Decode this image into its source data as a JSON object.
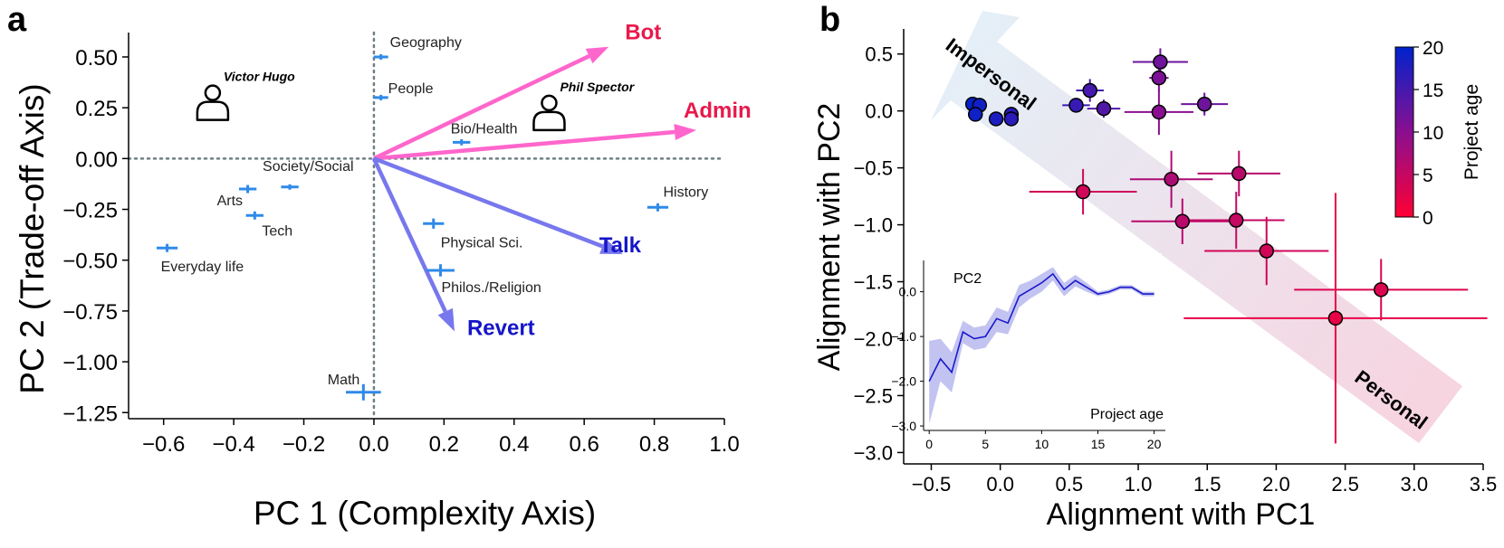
{
  "chart_data": [
    {
      "panel": "a",
      "type": "scatter",
      "xlabel": "PC 1 (Complexity Axis)",
      "ylabel": "PC 2 (Trade-off Axis)",
      "xlim": [
        -0.7,
        1.0
      ],
      "ylim": [
        -1.28,
        0.62
      ],
      "xticks": [
        -0.6,
        -0.4,
        -0.2,
        0.0,
        0.2,
        0.4,
        0.6,
        0.8,
        1.0
      ],
      "xtick_labels": [
        "−0.6",
        "−0.4",
        "−0.2",
        "0.0",
        "0.2",
        "0.4",
        "0.6",
        "0.8",
        "1.0"
      ],
      "yticks": [
        0.5,
        0.25,
        0.0,
        -0.25,
        -0.5,
        -0.75,
        -1.0,
        -1.25
      ],
      "ytick_labels": [
        "0.50",
        "0.25",
        "0.00",
        "−0.25",
        "−0.50",
        "−0.75",
        "−1.00",
        "−1.25"
      ],
      "topics": [
        {
          "label": "Geography",
          "x": 0.02,
          "y": 0.5,
          "xerr": 0.02,
          "yerr": 0.01
        },
        {
          "label": "People",
          "x": 0.02,
          "y": 0.3,
          "xerr": 0.015,
          "yerr": 0.01
        },
        {
          "label": "Bio/Health",
          "x": 0.25,
          "y": 0.08,
          "xerr": 0.025,
          "yerr": 0.015
        },
        {
          "label": "Society/Social",
          "x": -0.24,
          "y": -0.14,
          "xerr": 0.025,
          "yerr": 0.01
        },
        {
          "label": "Arts",
          "x": -0.36,
          "y": -0.15,
          "xerr": 0.025,
          "yerr": 0.02
        },
        {
          "label": "Tech",
          "x": -0.34,
          "y": -0.28,
          "xerr": 0.025,
          "yerr": 0.02
        },
        {
          "label": "Everyday life",
          "x": -0.59,
          "y": -0.44,
          "xerr": 0.03,
          "yerr": 0.02
        },
        {
          "label": "History",
          "x": 0.81,
          "y": -0.24,
          "xerr": 0.03,
          "yerr": 0.02
        },
        {
          "label": "Physical Sci.",
          "x": 0.17,
          "y": -0.32,
          "xerr": 0.03,
          "yerr": 0.025
        },
        {
          "label": "Philos./Religion",
          "x": 0.19,
          "y": -0.55,
          "xerr": 0.04,
          "yerr": 0.03
        },
        {
          "label": "Math",
          "x": -0.03,
          "y": -1.15,
          "xerr": 0.05,
          "yerr": 0.04
        }
      ],
      "arrows": [
        {
          "label": "Bot",
          "x": 0.67,
          "y": 0.55,
          "color": "#ff66cc",
          "label_color": "#e8194b"
        },
        {
          "label": "Admin",
          "x": 0.92,
          "y": 0.14,
          "color": "#ff66cc",
          "label_color": "#e8194b"
        },
        {
          "label": "Talk",
          "x": 0.71,
          "y": -0.47,
          "color": "#7777ee",
          "label_color": "#1515c8"
        },
        {
          "label": "Revert",
          "x": 0.23,
          "y": -0.85,
          "color": "#7777ee",
          "label_color": "#1515c8"
        }
      ],
      "persons": [
        {
          "label": "Victor Hugo",
          "x": -0.46,
          "y": 0.27
        },
        {
          "label": "Phil Spector",
          "x": 0.5,
          "y": 0.22
        }
      ]
    },
    {
      "panel": "b",
      "type": "scatter",
      "xlabel": "Alignment with PC1",
      "ylabel": "Alignment with PC2",
      "xlim": [
        -0.7,
        3.5
      ],
      "ylim": [
        -3.1,
        0.72
      ],
      "xticks": [
        -0.5,
        0.0,
        0.5,
        1.0,
        1.5,
        2.0,
        2.5,
        3.0,
        3.5
      ],
      "xtick_labels": [
        "−0.5",
        "0.0",
        "0.5",
        "1.0",
        "1.5",
        "2.0",
        "2.5",
        "3.0",
        "3.5"
      ],
      "yticks": [
        0.5,
        0.0,
        -0.5,
        -1.0,
        -1.5,
        -2.0,
        -2.5,
        -3.0
      ],
      "ytick_labels": [
        "0.5",
        "0.0",
        "−0.5",
        "−1.0",
        "−1.5",
        "−2.0",
        "−2.5",
        "−3.0"
      ],
      "band_labels": {
        "top": "Impersonal",
        "bottom": "Personal"
      },
      "colorbar": {
        "label": "Project age",
        "min": 0,
        "max": 20,
        "ticks": [
          0,
          5,
          10,
          15,
          20
        ],
        "tick_labels": [
          "0",
          "5",
          "10",
          "15",
          "20"
        ],
        "low_color": "#ff0033",
        "high_color": "#0022cc"
      },
      "points": [
        {
          "x": -0.2,
          "y": 0.06,
          "xerr": 0,
          "yerr": 0,
          "age": 20
        },
        {
          "x": -0.15,
          "y": 0.05,
          "xerr": 0,
          "yerr": 0,
          "age": 19
        },
        {
          "x": -0.18,
          "y": -0.03,
          "xerr": 0,
          "yerr": 0,
          "age": 19
        },
        {
          "x": -0.03,
          "y": -0.07,
          "xerr": 0,
          "yerr": 0,
          "age": 18
        },
        {
          "x": 0.08,
          "y": -0.03,
          "xerr": 0,
          "yerr": 0,
          "age": 17
        },
        {
          "x": 0.08,
          "y": -0.07,
          "xerr": 0,
          "yerr": 0,
          "age": 17
        },
        {
          "x": 0.55,
          "y": 0.05,
          "xerr": 0.1,
          "yerr": 0,
          "age": 16
        },
        {
          "x": 0.65,
          "y": 0.18,
          "xerr": 0.1,
          "yerr": 0.1,
          "age": 15
        },
        {
          "x": 0.75,
          "y": 0.02,
          "xerr": 0.12,
          "yerr": 0.08,
          "age": 14
        },
        {
          "x": 1.16,
          "y": 0.43,
          "xerr": 0.2,
          "yerr": 0.12,
          "age": 12
        },
        {
          "x": 1.15,
          "y": 0.29,
          "xerr": 0.07,
          "yerr": 0.12,
          "age": 11
        },
        {
          "x": 1.48,
          "y": 0.06,
          "xerr": 0.17,
          "yerr": 0.1,
          "age": 12
        },
        {
          "x": 1.15,
          "y": -0.01,
          "xerr": 0.25,
          "yerr": 0.2,
          "age": 10
        },
        {
          "x": 0.6,
          "y": -0.71,
          "xerr": 0.39,
          "yerr": 0.2,
          "age": 4
        },
        {
          "x": 1.24,
          "y": -0.6,
          "xerr": 0.3,
          "yerr": 0.25,
          "age": 7
        },
        {
          "x": 1.73,
          "y": -0.55,
          "xerr": 0.3,
          "yerr": 0.2,
          "age": 6
        },
        {
          "x": 1.32,
          "y": -0.97,
          "xerr": 0.37,
          "yerr": 0.2,
          "age": 6
        },
        {
          "x": 1.71,
          "y": -0.96,
          "xerr": 0.35,
          "yerr": 0.25,
          "age": 5
        },
        {
          "x": 1.93,
          "y": -1.23,
          "xerr": 0.45,
          "yerr": 0.3,
          "age": 4
        },
        {
          "x": 2.76,
          "y": -1.57,
          "xerr": 0.63,
          "yerr": 0.27,
          "age": 3
        },
        {
          "x": 2.43,
          "y": -1.82,
          "xerr": 1.1,
          "yerr": 1.1,
          "age": 2
        }
      ],
      "inset": {
        "type": "area",
        "ylabel": "PC2",
        "xlabel": "Project age",
        "xlim": [
          -0.5,
          21
        ],
        "ylim": [
          -3.1,
          0.7
        ],
        "xticks": [
          0,
          5,
          10,
          15,
          20
        ],
        "xtick_labels": [
          "0",
          "5",
          "10",
          "15",
          "20"
        ],
        "yticks": [
          0.0,
          -1.0,
          -2.0,
          -3.0
        ],
        "ytick_labels": [
          "0.0",
          "−1.0",
          "−2.0",
          "−3.0"
        ],
        "x": [
          0,
          1,
          2,
          3,
          4,
          5,
          6,
          7,
          8,
          9,
          10,
          11,
          12,
          13,
          14,
          15,
          16,
          17,
          18,
          19,
          20
        ],
        "y": [
          -2.0,
          -1.5,
          -1.8,
          -0.9,
          -1.05,
          -1.0,
          -0.6,
          -0.7,
          -0.1,
          0.05,
          0.2,
          0.4,
          0.05,
          0.25,
          0.1,
          -0.05,
          0.0,
          0.1,
          0.1,
          -0.05,
          -0.05
        ],
        "lo": [
          -2.95,
          -2.0,
          -2.25,
          -1.15,
          -1.3,
          -1.25,
          -0.9,
          -0.95,
          -0.35,
          -0.15,
          0.0,
          0.25,
          -0.1,
          0.12,
          0.0,
          -0.1,
          -0.05,
          0.05,
          0.05,
          -0.1,
          -0.1
        ],
        "hi": [
          -1.1,
          -1.05,
          -1.35,
          -0.65,
          -0.8,
          -0.75,
          -0.35,
          -0.45,
          0.15,
          0.25,
          0.4,
          0.55,
          0.2,
          0.38,
          0.2,
          0.0,
          0.05,
          0.15,
          0.15,
          0.0,
          0.0
        ]
      }
    }
  ]
}
